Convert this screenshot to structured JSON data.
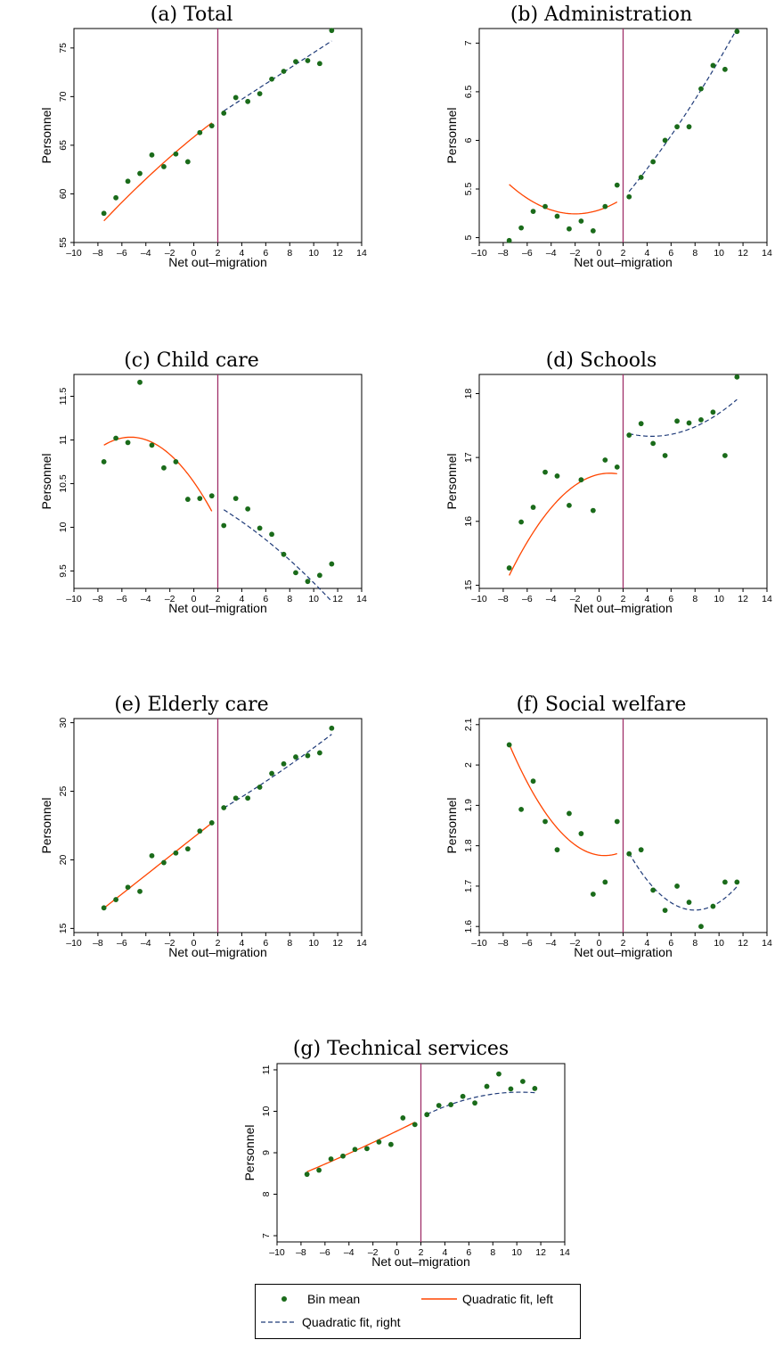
{
  "colors": {
    "points": "#1a6b1a",
    "fit_left": "#ff4500",
    "fit_right": "#1e3a78",
    "cutoff": "#a0306a"
  },
  "legend": {
    "bin_mean": "Bin mean",
    "fit_left": "Quadratic fit, left",
    "fit_right": "Quadratic fit, right"
  },
  "chart_data": [
    {
      "type": "scatter",
      "title": "(a) Total",
      "xlabel": "Net out–migration",
      "ylabel": "Personnel",
      "xlim": [
        -10,
        14
      ],
      "ylim": [
        55,
        77
      ],
      "x_ticks": [
        -10,
        -8,
        -6,
        -4,
        -2,
        0,
        2,
        4,
        6,
        8,
        10,
        12,
        14
      ],
      "y_ticks": [
        55,
        60,
        65,
        70,
        75
      ],
      "cutoff": 2,
      "grid": false,
      "x": [
        -7.5,
        -6.5,
        -5.5,
        -4.5,
        -3.5,
        -2.5,
        -1.5,
        -0.5,
        0.5,
        1.5,
        2.5,
        3.5,
        4.5,
        5.5,
        6.5,
        7.5,
        8.5,
        9.5,
        10.5,
        11.5
      ],
      "y": [
        58.0,
        59.6,
        61.3,
        62.1,
        64.0,
        62.8,
        64.1,
        63.3,
        66.3,
        67.0,
        68.3,
        69.9,
        69.5,
        70.3,
        71.8,
        72.6,
        73.6,
        73.7,
        73.4,
        76.8
      ],
      "fit_left": {
        "coef": [
          65.85,
          1.0,
          -0.02
        ],
        "range": [
          -7.5,
          1.5
        ]
      },
      "fit_right": {
        "coef": [
          66.52,
          0.8,
          0.0
        ],
        "range": [
          2.5,
          11.5
        ]
      }
    },
    {
      "type": "scatter",
      "title": "(b) Administration",
      "xlabel": "Net out–migration",
      "ylabel": "Personnel",
      "xlim": [
        -10,
        14
      ],
      "ylim": [
        4.95,
        7.15
      ],
      "x_ticks": [
        -10,
        -8,
        -6,
        -4,
        -2,
        0,
        2,
        4,
        6,
        8,
        10,
        12,
        14
      ],
      "y_ticks": [
        5,
        5.5,
        6,
        6.5,
        7
      ],
      "cutoff": 2,
      "grid": false,
      "x": [
        -7.5,
        -6.5,
        -5.5,
        -4.5,
        -3.5,
        -2.5,
        -1.5,
        -0.5,
        0.5,
        1.5,
        2.5,
        3.5,
        4.5,
        5.5,
        6.5,
        7.5,
        8.5,
        9.5,
        10.5,
        11.5
      ],
      "y": [
        4.97,
        5.1,
        5.27,
        5.32,
        5.22,
        5.09,
        5.17,
        5.07,
        5.32,
        5.54,
        5.42,
        5.62,
        5.78,
        6.0,
        6.14,
        6.14,
        6.53,
        6.77,
        6.73,
        7.12
      ],
      "fit_left": {
        "coef": [
          5.2845,
          0.04,
          0.01
        ],
        "range": [
          -7.5,
          1.5
        ]
      },
      "fit_right": {
        "coef": [
          5.1245,
          0.13,
          0.004
        ],
        "range": [
          2.5,
          11.5
        ]
      }
    },
    {
      "type": "scatter",
      "title": "(c) Child care",
      "xlabel": "Net out–migration",
      "ylabel": "Personnel",
      "xlim": [
        -10,
        14
      ],
      "ylim": [
        9.3,
        11.75
      ],
      "x_ticks": [
        -10,
        -8,
        -6,
        -4,
        -2,
        0,
        2,
        4,
        6,
        8,
        10,
        12,
        14
      ],
      "y_ticks": [
        9.5,
        10,
        10.5,
        11,
        11.5
      ],
      "cutoff": 2,
      "grid": false,
      "x": [
        -7.5,
        -6.5,
        -5.5,
        -4.5,
        -3.5,
        -2.5,
        -1.5,
        -0.5,
        0.5,
        1.5,
        2.5,
        3.5,
        4.5,
        5.5,
        6.5,
        7.5,
        8.5,
        9.5,
        10.5,
        11.5
      ],
      "y": [
        10.75,
        11.02,
        10.97,
        11.66,
        10.94,
        10.68,
        10.75,
        10.32,
        10.33,
        10.36,
        10.02,
        10.33,
        10.21,
        9.99,
        9.92,
        9.69,
        9.48,
        9.38,
        9.45,
        9.58
      ],
      "fit_left": {
        "coef": [
          10.518,
          -0.195,
          -0.0185
        ],
        "range": [
          -7.5,
          1.5
        ]
      },
      "fit_right": {
        "coef": [
          10.3945,
          -0.069,
          -0.0034
        ],
        "range": [
          2.5,
          11.5
        ]
      }
    },
    {
      "type": "scatter",
      "title": "(d) Schools",
      "xlabel": "Net out–migration",
      "ylabel": "Personnel",
      "xlim": [
        -10,
        14
      ],
      "ylim": [
        14.95,
        18.3
      ],
      "x_ticks": [
        -10,
        -8,
        -6,
        -4,
        -2,
        0,
        2,
        4,
        6,
        8,
        10,
        12,
        14
      ],
      "y_ticks": [
        15,
        16,
        17,
        18
      ],
      "cutoff": 2,
      "grid": false,
      "x": [
        -7.5,
        -6.5,
        -5.5,
        -4.5,
        -3.5,
        -2.5,
        -1.5,
        -0.5,
        0.5,
        1.5,
        2.5,
        3.5,
        4.5,
        5.5,
        6.5,
        7.5,
        8.5,
        9.5,
        10.5,
        11.5
      ],
      "y": [
        15.27,
        15.99,
        16.22,
        16.77,
        16.71,
        16.25,
        16.65,
        16.17,
        16.96,
        16.85,
        17.35,
        17.53,
        17.22,
        17.03,
        17.57,
        17.54,
        17.59,
        17.71,
        17.03,
        18.26
      ],
      "fit_left": {
        "coef": [
          16.7362,
          0.04,
          -0.0228
        ],
        "range": [
          -7.5,
          1.5
        ]
      },
      "fit_right": {
        "coef": [
          17.5512,
          -0.1,
          0.0114
        ],
        "range": [
          2.5,
          11.5
        ]
      }
    },
    {
      "type": "scatter",
      "title": "(e) Elderly care",
      "xlabel": "Net out–migration",
      "ylabel": "Personnel",
      "xlim": [
        -10,
        14
      ],
      "ylim": [
        14.7,
        30.3
      ],
      "x_ticks": [
        -10,
        -8,
        -6,
        -4,
        -2,
        0,
        2,
        4,
        6,
        8,
        10,
        12,
        14
      ],
      "y_ticks": [
        15,
        20,
        25,
        30
      ],
      "cutoff": 2,
      "grid": false,
      "x": [
        -7.5,
        -6.5,
        -5.5,
        -4.5,
        -3.5,
        -2.5,
        -1.5,
        -0.5,
        0.5,
        1.5,
        2.5,
        3.5,
        4.5,
        5.5,
        6.5,
        7.5,
        8.5,
        9.5,
        10.5,
        11.5
      ],
      "y": [
        16.5,
        17.1,
        18.0,
        17.7,
        20.3,
        19.8,
        20.5,
        20.8,
        22.1,
        22.7,
        23.8,
        24.5,
        24.5,
        25.3,
        26.3,
        27.0,
        27.5,
        27.6,
        27.8,
        29.6
      ],
      "fit_left": {
        "coef": [
          21.65,
          0.69,
          0.0
        ],
        "range": [
          -7.5,
          1.5
        ]
      },
      "fit_right": {
        "coef": [
          22.52,
          0.485,
          0.008
        ],
        "range": [
          2.5,
          11.5
        ]
      }
    },
    {
      "type": "scatter",
      "title": "(f) Social welfare",
      "xlabel": "Net out–migration",
      "ylabel": "Personnel",
      "xlim": [
        -10,
        14
      ],
      "ylim": [
        1.585,
        2.115
      ],
      "x_ticks": [
        -10,
        -8,
        -6,
        -4,
        -2,
        0,
        2,
        4,
        6,
        8,
        10,
        12,
        14
      ],
      "y_ticks": [
        1.6,
        1.7,
        1.8,
        1.9,
        2,
        2.1
      ],
      "cutoff": 2,
      "grid": false,
      "x": [
        -7.5,
        -6.5,
        -5.5,
        -4.5,
        -3.5,
        -2.5,
        -1.5,
        -0.5,
        0.5,
        1.5,
        2.5,
        3.5,
        4.5,
        5.5,
        6.5,
        7.5,
        8.5,
        9.5,
        10.5,
        11.5
      ],
      "y": [
        2.05,
        1.89,
        1.96,
        1.86,
        1.79,
        1.88,
        1.83,
        1.68,
        1.71,
        1.86,
        1.78,
        1.79,
        1.69,
        1.64,
        1.7,
        1.66,
        1.6,
        1.65,
        1.71,
        1.71
      ],
      "fit_left": {
        "coef": [
          1.7766,
          -0.004,
          0.00435
        ],
        "range": [
          -7.5,
          1.5
        ]
      },
      "fit_right": {
        "coef": [
          1.9398,
          -0.075,
          0.0047
        ],
        "range": [
          2.5,
          11.5
        ]
      }
    },
    {
      "type": "scatter",
      "title": "(g) Technical services",
      "xlabel": "Net out–migration",
      "ylabel": "Personnel",
      "xlim": [
        -10,
        14
      ],
      "ylim": [
        6.85,
        11.15
      ],
      "x_ticks": [
        -10,
        -8,
        -6,
        -4,
        -2,
        0,
        2,
        4,
        6,
        8,
        10,
        12,
        14
      ],
      "y_ticks": [
        7,
        8,
        9,
        10,
        11
      ],
      "cutoff": 2,
      "grid": false,
      "x": [
        -7.5,
        -6.5,
        -5.5,
        -4.5,
        -3.5,
        -2.5,
        -1.5,
        -0.5,
        0.5,
        1.5,
        2.5,
        3.5,
        4.5,
        5.5,
        6.5,
        7.5,
        8.5,
        9.5,
        10.5,
        11.5
      ],
      "y": [
        8.48,
        8.58,
        8.85,
        8.92,
        9.08,
        9.1,
        9.26,
        9.2,
        9.84,
        9.68,
        9.92,
        10.14,
        10.16,
        10.36,
        10.2,
        10.6,
        10.9,
        10.54,
        10.72,
        10.55
      ],
      "fit_left": {
        "coef": [
          9.5236,
          0.14,
          0.0012
        ],
        "range": [
          -7.5,
          1.5
        ]
      },
      "fit_right": {
        "coef": [
          9.53,
          0.181,
          -0.0088
        ],
        "range": [
          2.5,
          11.5
        ]
      }
    }
  ]
}
